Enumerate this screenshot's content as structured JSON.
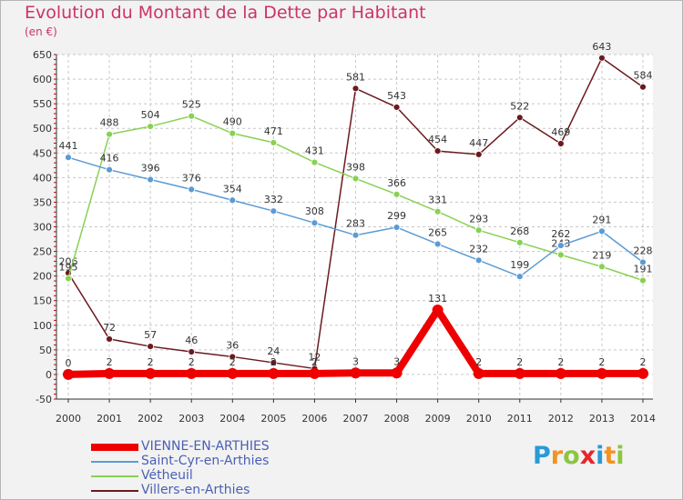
{
  "chart_data": {
    "type": "line",
    "title": "Evolution du Montant de la Dette par Habitant",
    "unit": "(en €)",
    "x": [
      "2000",
      "2001",
      "2002",
      "2003",
      "2004",
      "2005",
      "2006",
      "2007",
      "2008",
      "2009",
      "2010",
      "2011",
      "2012",
      "2013",
      "2014"
    ],
    "ylim": [
      -50,
      650
    ],
    "yticks": [
      -50,
      0,
      50,
      100,
      150,
      200,
      250,
      300,
      350,
      400,
      450,
      500,
      550,
      600,
      650
    ],
    "grid": true,
    "legend_position": "bottom-left",
    "series": [
      {
        "name": "Villers-en-Arthies",
        "color": "#6b1a1f",
        "width": 1.5,
        "values": [
          206,
          72,
          57,
          46,
          36,
          24,
          12,
          581,
          543,
          454,
          447,
          522,
          469,
          643,
          584
        ]
      },
      {
        "name": "Vétheuil",
        "color": "#88d152",
        "width": 1.5,
        "values": [
          195,
          488,
          504,
          525,
          490,
          471,
          431,
          398,
          366,
          331,
          293,
          268,
          243,
          219,
          191
        ]
      },
      {
        "name": "Saint-Cyr-en-Arthies",
        "color": "#5b9bd5",
        "width": 1.5,
        "values": [
          441,
          416,
          396,
          376,
          354,
          332,
          308,
          283,
          299,
          265,
          232,
          199,
          262,
          291,
          228
        ]
      },
      {
        "name": "VIENNE-EN-ARTHIES",
        "color": "#ee0000",
        "width": 8,
        "values": [
          0,
          2,
          2,
          2,
          2,
          2,
          2,
          3,
          3,
          131,
          2,
          2,
          2,
          2,
          2
        ]
      }
    ]
  },
  "legend": {
    "items": [
      {
        "label": "VIENNE-EN-ARTHIES",
        "color": "#ee0000",
        "text_color": "#4a5fb4"
      },
      {
        "label": "Saint-Cyr-en-Arthies",
        "color": "#5b9bd5",
        "text_color": "#4a5fb4"
      },
      {
        "label": "Vétheuil",
        "color": "#88d152",
        "text_color": "#4a5fb4"
      },
      {
        "label": "Villers-en-Arthies",
        "color": "#6b1a1f",
        "text_color": "#4a5fb4"
      }
    ]
  },
  "logo": {
    "letters": [
      "P",
      "r",
      "o",
      "x",
      "i",
      "t",
      "i"
    ],
    "colors": [
      "#2a9ad8",
      "#f29222",
      "#8cc63f",
      "#e6262c",
      "#2a9ad8",
      "#f29222",
      "#8cc63f"
    ]
  }
}
